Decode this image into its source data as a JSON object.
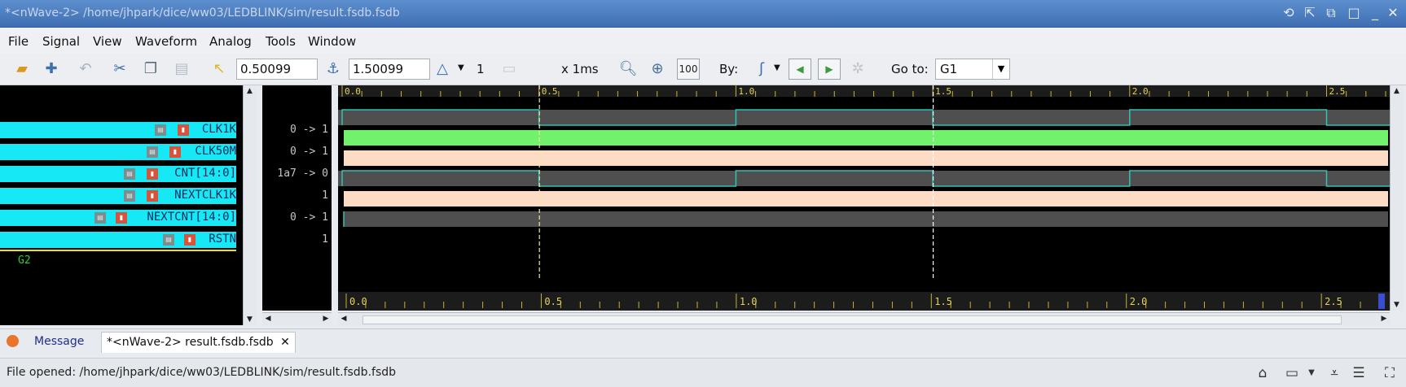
{
  "window": {
    "title": "*<nWave-2> /home/jhpark/dice/ww03/LEDBLINK/sim/result.fsdb.fsdb"
  },
  "menu": [
    "File",
    "Signal",
    "View",
    "Waveform",
    "Analog",
    "Tools",
    "Window"
  ],
  "toolbar": {
    "cursor_time": "0.50099",
    "marker_time": "1.50099",
    "delta_count": "1",
    "time_unit": "x 1ms",
    "zoom_100_label": "100",
    "by_label": "By:",
    "goto_label": "Go to:",
    "goto_value": "G1"
  },
  "signals": [
    {
      "name": "CLK1K",
      "value": "0 -> 1"
    },
    {
      "name": "CLK50M",
      "value": "0 -> 1"
    },
    {
      "name": "CNT[14:0]",
      "value": "1a7 -> 0"
    },
    {
      "name": "NEXTCLK1K",
      "value": "1"
    },
    {
      "name": "NEXTCNT[14:0]",
      "value": "0 -> 1"
    },
    {
      "name": "RSTN",
      "value": "1"
    }
  ],
  "group2_label": "G2",
  "ruler": {
    "top_labels": [
      "0.0",
      "0.5",
      "1.0",
      "1.5",
      "2.0",
      "2.5"
    ],
    "bottom_labels": [
      "0.0",
      "0.5",
      "1.0",
      "1.5",
      "2.0",
      "2.5"
    ]
  },
  "waveform": {
    "time_range": [
      0,
      2.65
    ],
    "cursor_time": 0.50099,
    "marker_time": 1.50099,
    "clk1k_edges": [
      0,
      0.5,
      1.0,
      1.5,
      2.0,
      2.5
    ],
    "colors": {
      "clock_line": "#2ec4b6",
      "clock_fill": "#4f4f4f",
      "bus_fill": "#fcdcc4",
      "active_bus_fill": "#72f26c",
      "signal_bg": "#16e9f5",
      "group_line": "#f2e200"
    }
  },
  "tabs": {
    "message": "Message",
    "active_doc": "*<nWave-2> result.fsdb.fsdb"
  },
  "status": {
    "text": "File opened: /home/jhpark/dice/ww03/LEDBLINK/sim/result.fsdb.fsdb"
  },
  "icons": [
    "home-icon",
    "layout-icon",
    "collapse-icon",
    "list-icon",
    "fullscreen-icon"
  ]
}
